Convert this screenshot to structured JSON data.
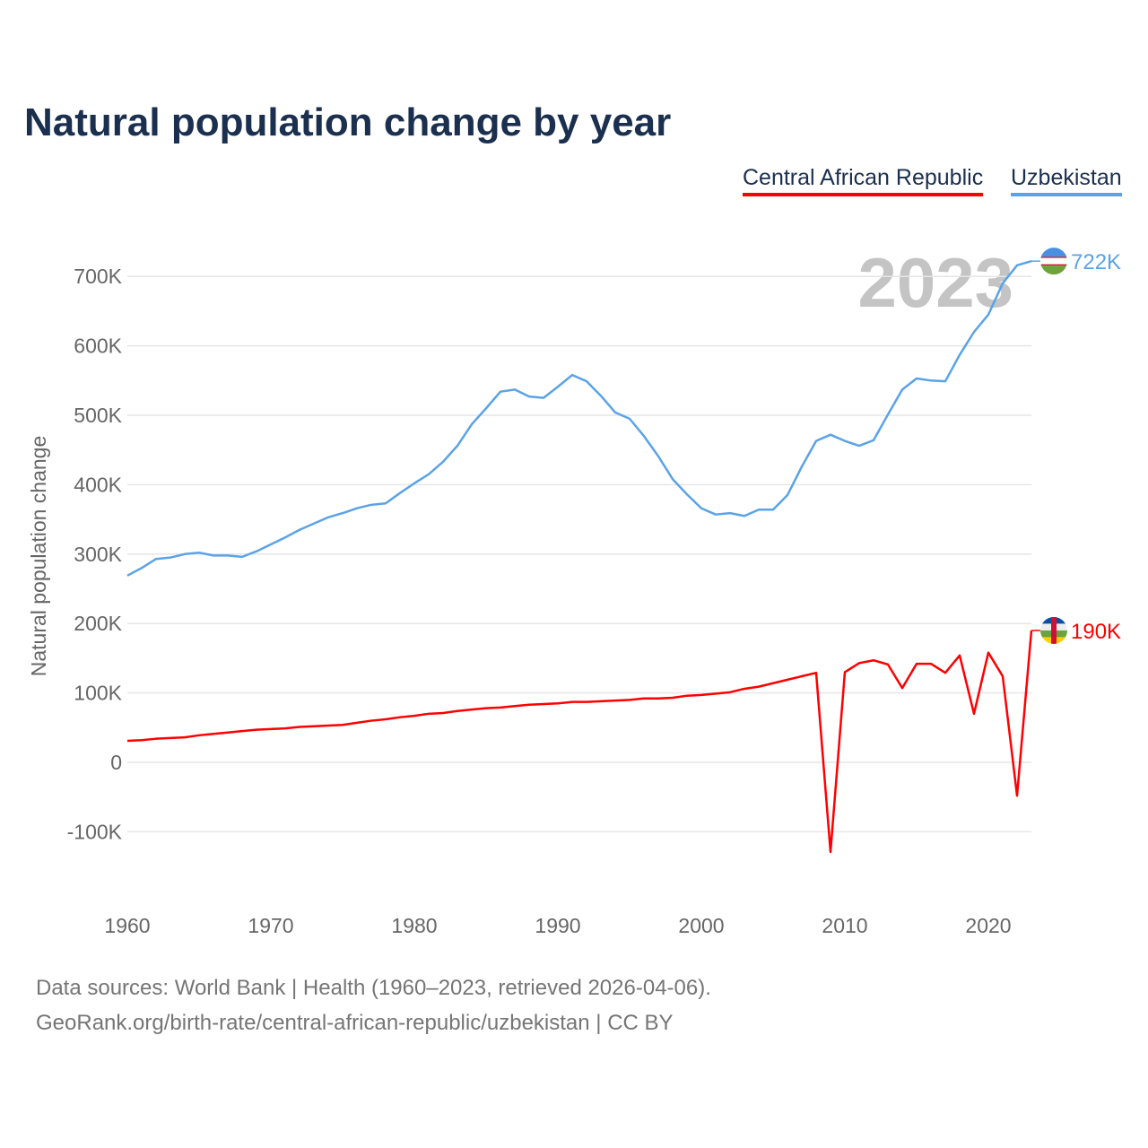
{
  "title": "Natural population change by year",
  "footer": {
    "line1": "Data sources: World Bank | Health (1960–2023, retrieved 2026-04-06).",
    "line2": "GeoRank.org/birth-rate/central-african-republic/uzbekistan | CC BY"
  },
  "chart_data": {
    "type": "line",
    "title": "Natural population change by year",
    "xlabel": "",
    "ylabel": "Natural population change",
    "year_watermark": "2023",
    "xlim": [
      1960,
      2023
    ],
    "ylim": [
      -200000,
      750000
    ],
    "x_ticks": [
      1960,
      1970,
      1980,
      1990,
      2000,
      2010,
      2020
    ],
    "x_tick_labels": [
      "1960",
      "1970",
      "1980",
      "1990",
      "2000",
      "2010",
      "2020"
    ],
    "y_ticks": [
      -100000,
      0,
      100000,
      200000,
      300000,
      400000,
      500000,
      600000,
      700000
    ],
    "y_tick_labels": [
      "-100K",
      "0",
      "100K",
      "200K",
      "300K",
      "400K",
      "500K",
      "600K",
      "700K"
    ],
    "grid": true,
    "legend_placement": "top-right",
    "x": [
      1960,
      1961,
      1962,
      1963,
      1964,
      1965,
      1966,
      1967,
      1968,
      1969,
      1970,
      1971,
      1972,
      1973,
      1974,
      1975,
      1976,
      1977,
      1978,
      1979,
      1980,
      1981,
      1982,
      1983,
      1984,
      1985,
      1986,
      1987,
      1988,
      1989,
      1990,
      1991,
      1992,
      1993,
      1994,
      1995,
      1996,
      1997,
      1998,
      1999,
      2000,
      2001,
      2002,
      2003,
      2004,
      2005,
      2006,
      2007,
      2008,
      2009,
      2010,
      2011,
      2012,
      2013,
      2014,
      2015,
      2016,
      2017,
      2018,
      2019,
      2020,
      2021,
      2022,
      2023
    ],
    "series": [
      {
        "name": "Central African Republic",
        "color": "#ff0000",
        "end_label": "190K",
        "flag": "central-african-republic-flag",
        "values": [
          31000,
          32000,
          34000,
          35000,
          36000,
          39000,
          41000,
          43000,
          45000,
          47000,
          48000,
          49000,
          51000,
          52000,
          53000,
          54000,
          57000,
          60000,
          62000,
          65000,
          67000,
          70000,
          71000,
          74000,
          76000,
          78000,
          79000,
          81000,
          83000,
          84000,
          85000,
          87000,
          87000,
          88000,
          89000,
          90000,
          92000,
          92000,
          93000,
          96000,
          97000,
          99000,
          101000,
          106000,
          109000,
          114000,
          119000,
          124000,
          129000,
          -129000,
          130000,
          143000,
          147000,
          141000,
          107000,
          142000,
          142000,
          129000,
          154000,
          70000,
          158000,
          124000,
          -48000,
          190000
        ]
      },
      {
        "name": "Uzbekistan",
        "color": "#5aa3e8",
        "end_label": "722K",
        "flag": "uzbekistan-flag",
        "values": [
          269000,
          280000,
          293000,
          295000,
          300000,
          302000,
          298000,
          298000,
          296000,
          304000,
          314000,
          324000,
          335000,
          344000,
          353000,
          359000,
          366000,
          371000,
          373000,
          388000,
          402000,
          415000,
          433000,
          456000,
          487000,
          510000,
          534000,
          537000,
          527000,
          525000,
          541000,
          558000,
          549000,
          528000,
          504000,
          495000,
          470000,
          441000,
          408000,
          386000,
          366000,
          357000,
          359000,
          355000,
          364000,
          364000,
          385000,
          426000,
          463000,
          472000,
          463000,
          456000,
          464000,
          501000,
          537000,
          553000,
          550000,
          549000,
          587000,
          620000,
          645000,
          690000,
          716000,
          722000
        ]
      }
    ]
  }
}
